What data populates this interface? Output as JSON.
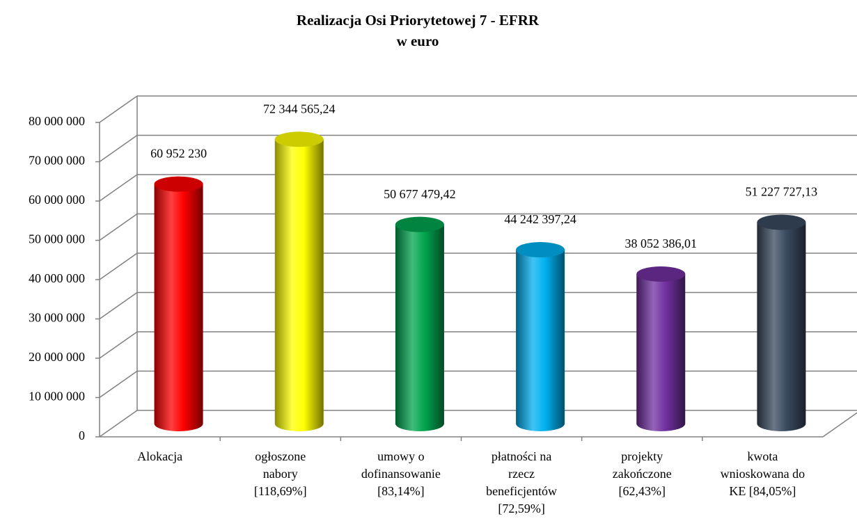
{
  "chart_data": {
    "type": "bar3d",
    "title": "Realizacja Osi Priorytetowej 7 - EFRR",
    "subtitle": "w euro",
    "categories": [
      [
        "Alokacja"
      ],
      [
        "ogłoszone",
        "nabory",
        "[118,69%]"
      ],
      [
        "umowy o",
        "dofinansowanie",
        "[83,14%]"
      ],
      [
        "płatności na",
        "rzecz",
        "beneficjentów",
        "[72,59%]"
      ],
      [
        "projekty",
        "zakończone",
        "[62,43%]"
      ],
      [
        "kwota",
        "wnioskowana do",
        "KE [84,05%]"
      ]
    ],
    "values": [
      60952230,
      72344565.24,
      50677479.42,
      44242397.24,
      38052386.01,
      51227727.13
    ],
    "value_labels": [
      "60 952 230",
      "72 344 565,24",
      "50 677 479,42",
      "44 242 397,24",
      "38 052 386,01",
      "51 227 727,13"
    ],
    "colors": [
      "#ff0000",
      "#ffff00",
      "#00a54f",
      "#00b0f0",
      "#7030a0",
      "#3a4a5f"
    ],
    "ylim": [
      0,
      80000000
    ],
    "yticks": [
      0,
      {
        "value": 10000000,
        "label": "10 000 000"
      },
      {
        "value": 20000000,
        "label": "20 000 000"
      },
      {
        "value": 30000000,
        "label": "30 000 000"
      },
      {
        "value": 40000000,
        "label": "40 000 000"
      },
      {
        "value": 50000000,
        "label": "50 000 000"
      },
      {
        "value": 60000000,
        "label": "60 000 000"
      },
      {
        "value": 70000000,
        "label": "70 000 000"
      },
      {
        "value": 80000000,
        "label": "80 000 000"
      }
    ],
    "grid": true
  }
}
